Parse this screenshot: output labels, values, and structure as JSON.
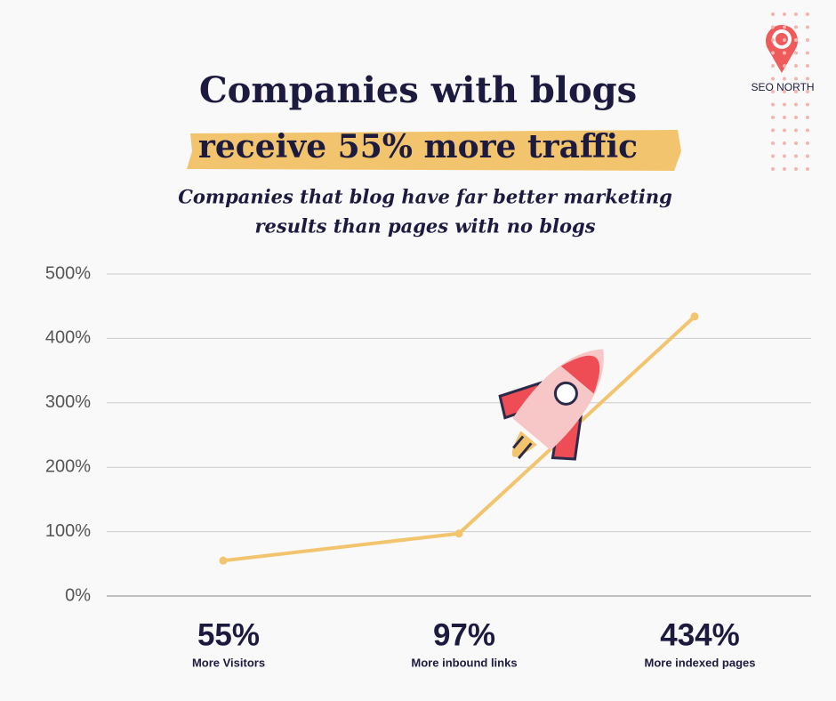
{
  "chart_data": {
    "type": "line",
    "title": "Companies with blogs",
    "highlight": "receive 55% more traffic",
    "subtitle": [
      "Companies that blog have far better marketing",
      "results than pages with no blogs"
    ],
    "logo": "SEO NORTH",
    "categories": [
      "More Visitors",
      "More inbound links",
      "More indexed pages"
    ],
    "values": [
      55,
      97,
      434
    ],
    "value_labels": [
      "55%",
      "97%",
      "434%"
    ],
    "color": "#f2c46d",
    "ylim": [
      0,
      500
    ],
    "yticks": [
      {
        "value": 0,
        "label": "0%"
      },
      {
        "value": 100,
        "label": "100%"
      },
      {
        "value": 200,
        "label": "200%"
      },
      {
        "value": 300,
        "label": "300%"
      },
      {
        "value": 400,
        "label": "400%"
      },
      {
        "value": 500,
        "label": "500%"
      }
    ],
    "grid": true
  }
}
